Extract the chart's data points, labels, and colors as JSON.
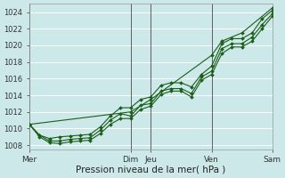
{
  "title": "",
  "xlabel": "Pression niveau de la mer( hPa )",
  "ylabel": "",
  "bg_color": "#cce8e8",
  "grid_color": "#ffffff",
  "line_color": "#1a5e1a",
  "ylim": [
    1007.5,
    1025.0
  ],
  "yticks": [
    1008,
    1010,
    1012,
    1014,
    1016,
    1018,
    1020,
    1022,
    1024
  ],
  "day_labels": [
    "Mer",
    "Dim",
    "Jeu",
    "Ven",
    "Sam"
  ],
  "day_positions": [
    0.0,
    0.4167,
    0.5,
    0.75,
    1.0
  ],
  "series_upper": [
    [
      0.0,
      1010.5
    ],
    [
      0.042,
      1009.2
    ],
    [
      0.083,
      1008.8
    ],
    [
      0.125,
      1009.0
    ],
    [
      0.167,
      1009.1
    ],
    [
      0.208,
      1009.2
    ],
    [
      0.25,
      1009.3
    ],
    [
      0.292,
      1010.2
    ],
    [
      0.333,
      1011.5
    ],
    [
      0.375,
      1012.5
    ],
    [
      0.4167,
      1012.5
    ],
    [
      0.458,
      1013.5
    ],
    [
      0.5,
      1013.8
    ],
    [
      0.542,
      1015.2
    ],
    [
      0.583,
      1015.5
    ],
    [
      0.625,
      1015.5
    ],
    [
      0.667,
      1015.0
    ],
    [
      0.708,
      1016.5
    ],
    [
      0.75,
      1017.5
    ],
    [
      0.792,
      1020.2
    ],
    [
      0.833,
      1020.8
    ],
    [
      0.875,
      1020.8
    ],
    [
      0.917,
      1021.5
    ],
    [
      0.958,
      1023.2
    ],
    [
      1.0,
      1024.2
    ]
  ],
  "series_mid": [
    [
      0.0,
      1010.5
    ],
    [
      0.042,
      1009.2
    ],
    [
      0.083,
      1008.5
    ],
    [
      0.125,
      1008.5
    ],
    [
      0.167,
      1008.7
    ],
    [
      0.208,
      1008.8
    ],
    [
      0.25,
      1008.9
    ],
    [
      0.292,
      1009.8
    ],
    [
      0.333,
      1011.0
    ],
    [
      0.375,
      1011.8
    ],
    [
      0.4167,
      1011.5
    ],
    [
      0.458,
      1012.8
    ],
    [
      0.5,
      1013.0
    ],
    [
      0.542,
      1014.5
    ],
    [
      0.583,
      1014.8
    ],
    [
      0.625,
      1014.8
    ],
    [
      0.667,
      1014.2
    ],
    [
      0.708,
      1016.2
    ],
    [
      0.75,
      1016.9
    ],
    [
      0.792,
      1019.6
    ],
    [
      0.833,
      1020.2
    ],
    [
      0.875,
      1020.2
    ],
    [
      0.917,
      1021.0
    ],
    [
      0.958,
      1022.5
    ],
    [
      1.0,
      1023.8
    ]
  ],
  "series_lower": [
    [
      0.0,
      1010.5
    ],
    [
      0.042,
      1009.0
    ],
    [
      0.083,
      1008.3
    ],
    [
      0.125,
      1008.2
    ],
    [
      0.167,
      1008.4
    ],
    [
      0.208,
      1008.5
    ],
    [
      0.25,
      1008.6
    ],
    [
      0.292,
      1009.4
    ],
    [
      0.333,
      1010.5
    ],
    [
      0.375,
      1011.2
    ],
    [
      0.4167,
      1011.2
    ],
    [
      0.458,
      1012.3
    ],
    [
      0.5,
      1012.7
    ],
    [
      0.542,
      1014.1
    ],
    [
      0.583,
      1014.5
    ],
    [
      0.625,
      1014.5
    ],
    [
      0.667,
      1013.8
    ],
    [
      0.708,
      1015.8
    ],
    [
      0.75,
      1016.5
    ],
    [
      0.792,
      1019.0
    ],
    [
      0.833,
      1019.8
    ],
    [
      0.875,
      1019.8
    ],
    [
      0.917,
      1020.5
    ],
    [
      0.958,
      1022.0
    ],
    [
      1.0,
      1023.5
    ]
  ],
  "series_extra": [
    [
      0.0,
      1010.5
    ],
    [
      0.4167,
      1012.0
    ],
    [
      0.5,
      1013.5
    ],
    [
      0.75,
      1018.8
    ],
    [
      0.792,
      1020.5
    ],
    [
      0.875,
      1021.5
    ],
    [
      1.0,
      1024.5
    ]
  ]
}
